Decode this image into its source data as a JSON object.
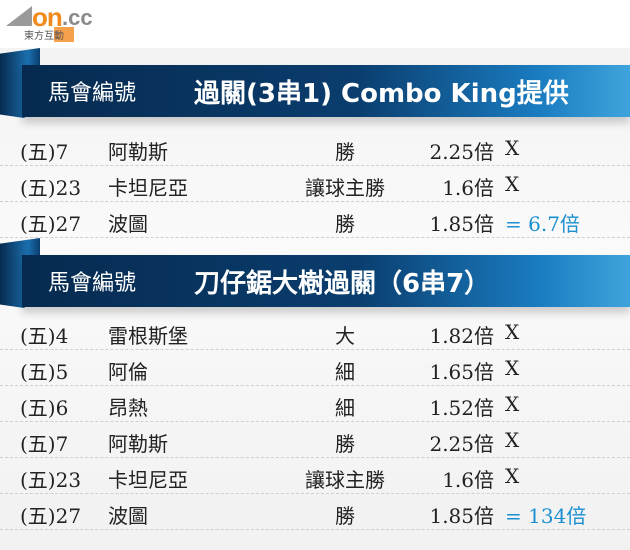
{
  "logo": {
    "brand": "on.cc",
    "sub": "東方互動",
    "colors": {
      "orange": "#f08a1c",
      "grey": "#8a8a8a"
    }
  },
  "sections": [
    {
      "label": "馬會編號",
      "title": "過關(3串1) Combo King提供",
      "rows": [
        {
          "code": "(五)7",
          "team": "阿勒斯",
          "bet": "勝",
          "odds": "2.25倍",
          "result": "X"
        },
        {
          "code": "(五)23",
          "team": "卡坦尼亞",
          "bet": "讓球主勝",
          "odds": "1.6倍",
          "result": "X"
        },
        {
          "code": "(五)27",
          "team": "波圖",
          "bet": "勝",
          "odds": "1.85倍",
          "result": "= 6.7倍"
        }
      ]
    },
    {
      "label": "馬會編號",
      "title": "刀仔鋸大樹過關（6串7）",
      "rows": [
        {
          "code": "(五)4",
          "team": "雷根斯堡",
          "bet": "大",
          "odds": "1.82倍",
          "result": "X"
        },
        {
          "code": "(五)5",
          "team": "阿倫",
          "bet": "細",
          "odds": "1.65倍",
          "result": "X"
        },
        {
          "code": "(五)6",
          "team": "昂熱",
          "bet": "細",
          "odds": "1.52倍",
          "result": "X"
        },
        {
          "code": "(五)7",
          "team": "阿勒斯",
          "bet": "勝",
          "odds": "2.25倍",
          "result": "X"
        },
        {
          "code": "(五)23",
          "team": "卡坦尼亞",
          "bet": "讓球主勝",
          "odds": "1.6倍",
          "result": "X"
        },
        {
          "code": "(五)27",
          "team": "波圖",
          "bet": "勝",
          "odds": "1.85倍",
          "result": "= 134倍"
        }
      ]
    }
  ],
  "colors": {
    "band": "#0a3d6e",
    "result": "#1b8fd0"
  }
}
